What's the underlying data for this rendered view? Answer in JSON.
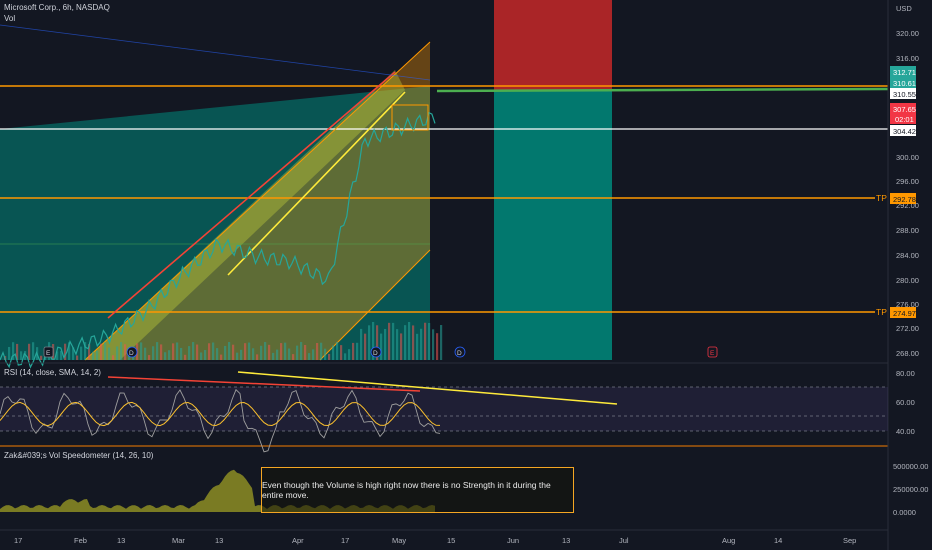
{
  "header": {
    "symbol_title": "Microsoft Corp., 6h, NASDAQ",
    "volume_label": "Vol",
    "currency": "USD"
  },
  "price_axis": {
    "ticks": [
      "320.00",
      "316.00",
      "300.00",
      "296.00",
      "292.00",
      "288.00",
      "284.00",
      "280.00",
      "276.00",
      "272.00",
      "268.00"
    ],
    "badges": [
      {
        "text": "312.71",
        "color": "#26a69a"
      },
      {
        "text": "310.61",
        "color": "#26a69a"
      },
      {
        "text": "310.55",
        "color": "#ffffff"
      },
      {
        "text": "307.65",
        "color": "#f23645"
      },
      {
        "text": "02:01",
        "color": "#f23645"
      },
      {
        "text": "304.42",
        "color": "#ffffff"
      },
      {
        "text": "292.78",
        "color": "#ff9800"
      },
      {
        "text": "274.97",
        "color": "#ff9800"
      }
    ],
    "tp_labels": [
      "TP",
      "TP"
    ]
  },
  "rsi": {
    "title": "RSI (14, close, SMA, 14, 2)",
    "ticks": [
      "80.00",
      "60.00",
      "40.00"
    ]
  },
  "speedometer": {
    "title": "Zak&#039;s Vol Speedometer (14, 26, 10)",
    "ticks": [
      "500000.00",
      "250000.00",
      "0.0000"
    ]
  },
  "annotation": {
    "text": "Even though the Volume is high right now there is no Strength in it during the entire move."
  },
  "time_axis": {
    "labels": [
      "17",
      "Feb",
      "13",
      "Mar",
      "13",
      "Apr",
      "17",
      "May",
      "15",
      "Jun",
      "13",
      "Jul",
      "Aug",
      "14",
      "Sep"
    ]
  },
  "event_markers": [
    "E",
    "D",
    "D",
    "D",
    "E"
  ],
  "colors": {
    "background": "#131722",
    "orange_line": "#ff9800",
    "teal_zone": "#00897b",
    "red_zone": "#c62828",
    "rsi_line": "#7e57c2",
    "volume_fill": "#9e9d24"
  },
  "chart_data": {
    "type": "line",
    "price_levels": {
      "resistance": 310.55,
      "support_white": 304.42,
      "tp1": 292.78,
      "tp2": 274.97,
      "last_price": 307.65
    },
    "price_ylim": [
      268,
      322
    ],
    "price_series_approx": {
      "x": [
        "Jan 17",
        "Feb 1",
        "Feb 13",
        "Mar 1",
        "Mar 13",
        "Mar 25",
        "Apr 1",
        "Apr 10",
        "Apr 17",
        "Apr 24",
        "May 1",
        "May 8",
        "May 12"
      ],
      "values": [
        268,
        268,
        270,
        272,
        276,
        282,
        287,
        285,
        284,
        281,
        304,
        306,
        308
      ]
    },
    "rsi_ylim": [
      30,
      85
    ],
    "rsi_levels": [
      70,
      50,
      30
    ],
    "volume_ylim": [
      0,
      600000
    ]
  }
}
